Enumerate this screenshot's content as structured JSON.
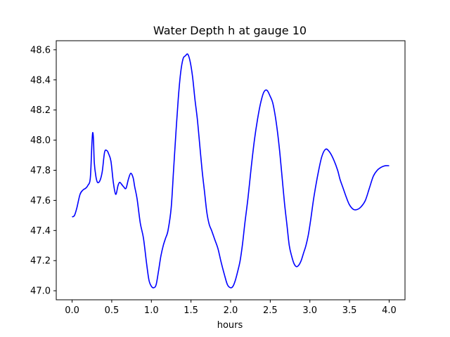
{
  "chart_data": {
    "type": "line",
    "title": "Water Depth h at gauge 10",
    "xlabel": "hours",
    "ylabel": "",
    "xlim": [
      -0.2,
      4.2
    ],
    "ylim": [
      46.94,
      48.66
    ],
    "grid": false,
    "x_ticks": [
      0.0,
      0.5,
      1.0,
      1.5,
      2.0,
      2.5,
      3.0,
      3.5,
      4.0
    ],
    "x_tick_labels": [
      "0.0",
      "0.5",
      "1.0",
      "1.5",
      "2.0",
      "2.5",
      "3.0",
      "3.5",
      "4.0"
    ],
    "y_ticks": [
      47.0,
      47.2,
      47.4,
      47.6,
      47.8,
      48.0,
      48.2,
      48.4,
      48.6
    ],
    "y_tick_labels": [
      "47.0",
      "47.2",
      "47.4",
      "47.6",
      "47.8",
      "48.0",
      "48.2",
      "48.4",
      "48.6"
    ],
    "series": [
      {
        "color": "#0000ff",
        "x": [
          0.0,
          0.03,
          0.06,
          0.1,
          0.14,
          0.17,
          0.2,
          0.23,
          0.25,
          0.26,
          0.27,
          0.28,
          0.3,
          0.32,
          0.35,
          0.38,
          0.41,
          0.44,
          0.46,
          0.49,
          0.52,
          0.55,
          0.58,
          0.6,
          0.62,
          0.65,
          0.68,
          0.71,
          0.74,
          0.77,
          0.79,
          0.82,
          0.86,
          0.9,
          0.94,
          0.97,
          1.0,
          1.03,
          1.06,
          1.09,
          1.12,
          1.15,
          1.18,
          1.21,
          1.25,
          1.28,
          1.31,
          1.34,
          1.37,
          1.4,
          1.43,
          1.46,
          1.49,
          1.52,
          1.55,
          1.58,
          1.61,
          1.64,
          1.67,
          1.7,
          1.73,
          1.76,
          1.8,
          1.84,
          1.88,
          1.92,
          1.96,
          2.0,
          2.03,
          2.06,
          2.09,
          2.12,
          2.15,
          2.18,
          2.22,
          2.26,
          2.3,
          2.34,
          2.38,
          2.42,
          2.46,
          2.5,
          2.53,
          2.56,
          2.59,
          2.62,
          2.65,
          2.68,
          2.71,
          2.74,
          2.77,
          2.8,
          2.83,
          2.86,
          2.89,
          2.92,
          2.95,
          2.98,
          3.01,
          3.05,
          3.1,
          3.15,
          3.2,
          3.25,
          3.3,
          3.35,
          3.38,
          3.42,
          3.46,
          3.5,
          3.55,
          3.6,
          3.65,
          3.7,
          3.75,
          3.8,
          3.85,
          3.9,
          3.95,
          4.0
        ],
        "y": [
          47.49,
          47.5,
          47.55,
          47.64,
          47.67,
          47.68,
          47.7,
          47.75,
          47.98,
          48.05,
          48.0,
          47.85,
          47.76,
          47.72,
          47.73,
          47.79,
          47.92,
          47.93,
          47.91,
          47.86,
          47.72,
          47.64,
          47.7,
          47.72,
          47.71,
          47.69,
          47.68,
          47.74,
          47.78,
          47.75,
          47.69,
          47.61,
          47.45,
          47.35,
          47.18,
          47.07,
          47.03,
          47.02,
          47.04,
          47.13,
          47.23,
          47.3,
          47.35,
          47.4,
          47.55,
          47.8,
          48.05,
          48.28,
          48.45,
          48.54,
          48.56,
          48.57,
          48.52,
          48.42,
          48.27,
          48.14,
          47.97,
          47.8,
          47.66,
          47.52,
          47.44,
          47.4,
          47.34,
          47.28,
          47.19,
          47.11,
          47.04,
          47.02,
          47.03,
          47.07,
          47.13,
          47.2,
          47.31,
          47.45,
          47.62,
          47.82,
          48.0,
          48.14,
          48.25,
          48.32,
          48.33,
          48.29,
          48.25,
          48.17,
          48.06,
          47.92,
          47.75,
          47.58,
          47.44,
          47.3,
          47.23,
          47.18,
          47.16,
          47.17,
          47.2,
          47.25,
          47.3,
          47.37,
          47.47,
          47.62,
          47.77,
          47.89,
          47.94,
          47.92,
          47.87,
          47.8,
          47.74,
          47.68,
          47.62,
          47.57,
          47.54,
          47.54,
          47.56,
          47.6,
          47.68,
          47.76,
          47.8,
          47.82,
          47.83,
          47.83
        ]
      }
    ]
  }
}
